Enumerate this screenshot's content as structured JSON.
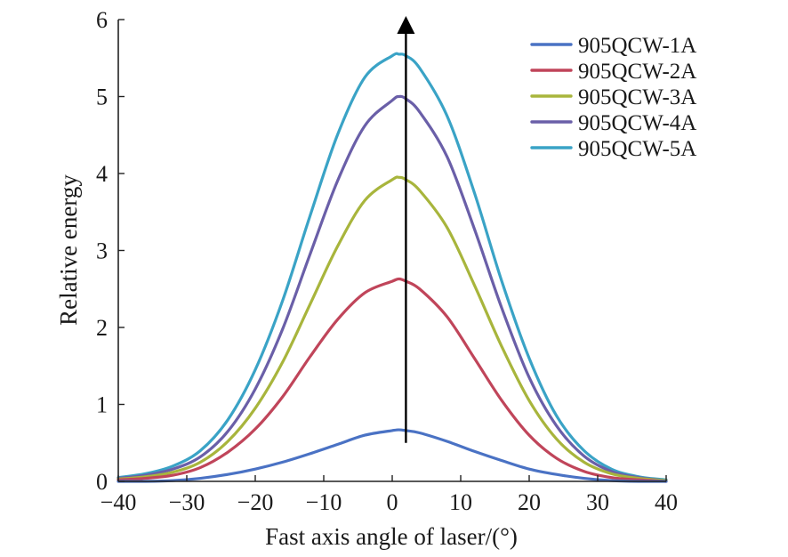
{
  "chart_data": {
    "type": "line",
    "title": "",
    "xlabel": "Fast axis angle of laser/(°)",
    "ylabel": "Relative energy",
    "xlim": [
      -40,
      40
    ],
    "ylim": [
      0,
      6
    ],
    "xticks": [
      -40,
      -30,
      -20,
      -10,
      0,
      10,
      20,
      30,
      40
    ],
    "xtick_labels": [
      "−40",
      "−30",
      "−20",
      "−10",
      "0",
      "10",
      "20",
      "30",
      "40"
    ],
    "yticks": [
      0,
      1,
      2,
      3,
      4,
      5,
      6
    ],
    "ytick_labels": [
      "0",
      "1",
      "2",
      "3",
      "4",
      "5",
      "6"
    ],
    "grid": false,
    "legend_position": "top-right",
    "x": [
      -40,
      -36,
      -32,
      -28,
      -24,
      -20,
      -16,
      -12,
      -8,
      -4,
      0,
      1,
      2,
      4,
      8,
      12,
      16,
      20,
      24,
      28,
      32,
      36,
      40
    ],
    "series": [
      {
        "name": "905QCW-1A",
        "color": "#4a72c4",
        "values": [
          0.0,
          0.0,
          0.01,
          0.04,
          0.09,
          0.16,
          0.25,
          0.36,
          0.48,
          0.6,
          0.66,
          0.67,
          0.66,
          0.63,
          0.52,
          0.39,
          0.27,
          0.16,
          0.09,
          0.04,
          0.01,
          0.0,
          0.0
        ]
      },
      {
        "name": "905QCW-2A",
        "color": "#c0455a",
        "values": [
          0.02,
          0.04,
          0.08,
          0.18,
          0.38,
          0.68,
          1.1,
          1.62,
          2.1,
          2.45,
          2.6,
          2.63,
          2.6,
          2.5,
          2.14,
          1.6,
          1.05,
          0.6,
          0.3,
          0.13,
          0.05,
          0.02,
          0.0
        ]
      },
      {
        "name": "905QCW-3A",
        "color": "#a8b53c",
        "values": [
          0.03,
          0.06,
          0.12,
          0.25,
          0.52,
          0.95,
          1.55,
          2.3,
          3.05,
          3.65,
          3.92,
          3.95,
          3.92,
          3.78,
          3.3,
          2.55,
          1.75,
          1.05,
          0.55,
          0.25,
          0.1,
          0.04,
          0.01
        ]
      },
      {
        "name": "905QCW-4A",
        "color": "#6a5fa8",
        "values": [
          0.04,
          0.08,
          0.16,
          0.32,
          0.65,
          1.2,
          1.98,
          2.95,
          3.9,
          4.62,
          4.95,
          5.0,
          4.97,
          4.8,
          4.22,
          3.28,
          2.25,
          1.35,
          0.72,
          0.33,
          0.13,
          0.05,
          0.01
        ]
      },
      {
        "name": "905QCW-5A",
        "color": "#3aa3c6",
        "values": [
          0.05,
          0.1,
          0.2,
          0.4,
          0.8,
          1.45,
          2.35,
          3.45,
          4.5,
          5.25,
          5.53,
          5.55,
          5.53,
          5.37,
          4.75,
          3.75,
          2.6,
          1.6,
          0.85,
          0.4,
          0.16,
          0.06,
          0.02
        ]
      }
    ],
    "annotation": {
      "type": "arrow",
      "x": 2,
      "y_start": 0.5,
      "y_end": 6.0
    }
  }
}
